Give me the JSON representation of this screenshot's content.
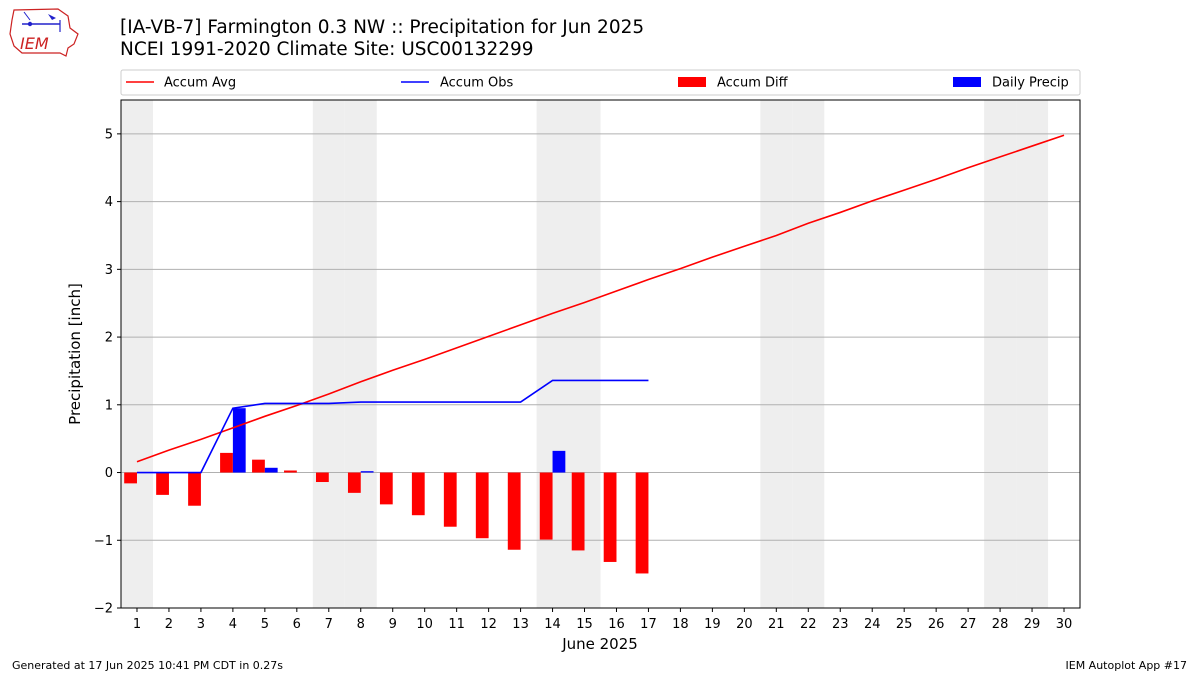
{
  "header": {
    "title_line1": "[IA-VB-7] Farmington 0.3 NW :: Precipitation for Jun 2025",
    "title_line2": "NCEI 1991-2020 Climate Site: USC00132299"
  },
  "logo": {
    "text": "IEM"
  },
  "footer": {
    "generated": "Generated at 17 Jun 2025 10:41 PM CDT in 0.27s",
    "app": "IEM Autoplot App #17"
  },
  "colors": {
    "avg": "#ff0000",
    "obs": "#0000ff",
    "diff": "#ff0000",
    "daily": "#0000ff",
    "weekend": "#eeeeee"
  },
  "chart_data": {
    "type": "bar",
    "xlabel": "June 2025",
    "ylabel": "Precipitation [inch]",
    "xlim": [
      0.5,
      30.5
    ],
    "ylim": [
      -2,
      5.5
    ],
    "yticks": [
      -2,
      -1,
      0,
      1,
      2,
      3,
      4,
      5
    ],
    "ytick_labels": [
      "−2",
      "−1",
      "0",
      "1",
      "2",
      "3",
      "4",
      "5"
    ],
    "x": [
      1,
      2,
      3,
      4,
      5,
      6,
      7,
      8,
      9,
      10,
      11,
      12,
      13,
      14,
      15,
      16,
      17,
      18,
      19,
      20,
      21,
      22,
      23,
      24,
      25,
      26,
      27,
      28,
      29,
      30
    ],
    "grid": "horizontal",
    "legend_placement": "top",
    "legend": [
      "Accum Avg",
      "Accum Obs",
      "Accum Diff",
      "Daily Precip"
    ],
    "weekend_days": [
      1,
      7,
      8,
      14,
      15,
      21,
      22,
      28,
      29
    ],
    "series": [
      {
        "name": "Accum Avg",
        "type": "line",
        "x": [
          1,
          2,
          3,
          4,
          5,
          6,
          7,
          8,
          9,
          10,
          11,
          12,
          13,
          14,
          15,
          16,
          17,
          18,
          19,
          20,
          21,
          22,
          23,
          24,
          25,
          26,
          27,
          28,
          29,
          30
        ],
        "values": [
          0.16,
          0.33,
          0.49,
          0.66,
          0.83,
          0.99,
          1.16,
          1.34,
          1.51,
          1.67,
          1.84,
          2.01,
          2.18,
          2.35,
          2.51,
          2.68,
          2.85,
          3.01,
          3.18,
          3.34,
          3.5,
          3.68,
          3.84,
          4.01,
          4.17,
          4.33,
          4.5,
          4.66,
          4.82,
          4.98
        ]
      },
      {
        "name": "Accum Obs",
        "type": "line",
        "x": [
          1,
          2,
          3,
          4,
          5,
          6,
          7,
          8,
          9,
          10,
          11,
          12,
          13,
          14,
          15,
          16,
          17
        ],
        "values": [
          0,
          0,
          0,
          0.95,
          1.02,
          1.02,
          1.02,
          1.04,
          1.04,
          1.04,
          1.04,
          1.04,
          1.04,
          1.36,
          1.36,
          1.36,
          1.36
        ]
      },
      {
        "name": "Accum Diff",
        "type": "bar",
        "x": [
          1,
          2,
          3,
          4,
          5,
          6,
          7,
          8,
          9,
          10,
          11,
          12,
          13,
          14,
          15,
          16,
          17
        ],
        "values": [
          -0.16,
          -0.33,
          -0.49,
          0.29,
          0.19,
          0.03,
          -0.14,
          -0.3,
          -0.47,
          -0.63,
          -0.8,
          -0.97,
          -1.14,
          -0.99,
          -1.15,
          -1.32,
          -1.49
        ]
      },
      {
        "name": "Daily Precip",
        "type": "bar",
        "x": [
          1,
          2,
          3,
          4,
          5,
          6,
          7,
          8,
          9,
          10,
          11,
          12,
          13,
          14,
          15,
          16,
          17
        ],
        "values": [
          0,
          0,
          0,
          0.95,
          0.07,
          0,
          0,
          0.02,
          0,
          0,
          0,
          0,
          0,
          0.32,
          0,
          0,
          0
        ]
      }
    ]
  }
}
